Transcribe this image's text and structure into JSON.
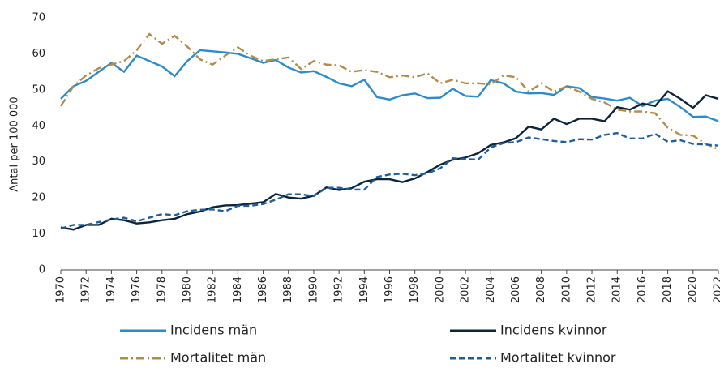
{
  "chart_data": {
    "type": "line",
    "y_label": "Antal per 100 000",
    "x": [
      1970,
      1971,
      1972,
      1973,
      1974,
      1975,
      1976,
      1977,
      1978,
      1979,
      1980,
      1981,
      1982,
      1983,
      1984,
      1985,
      1986,
      1987,
      1988,
      1989,
      1990,
      1991,
      1992,
      1993,
      1994,
      1995,
      1996,
      1997,
      1998,
      1999,
      2000,
      2001,
      2002,
      2003,
      2004,
      2005,
      2006,
      2007,
      2008,
      2009,
      2010,
      2011,
      2012,
      2013,
      2014,
      2015,
      2016,
      2017,
      2018,
      2019,
      2020,
      2021,
      2022
    ],
    "series": [
      {
        "name": "Incidens män",
        "color": "#2e8bc9",
        "dash": "solid",
        "values": [
          47.5,
          51,
          52.5,
          55,
          57.5,
          55,
          59.5,
          58,
          56.5,
          53.8,
          58,
          61,
          60.7,
          60.4,
          60,
          58.8,
          57.5,
          58.3,
          56.2,
          54.8,
          55.2,
          53.6,
          51.8,
          51,
          52.8,
          48,
          47.3,
          48.5,
          49,
          47.7,
          47.8,
          50.3,
          48.3,
          48.1,
          52.7,
          51.8,
          49.5,
          49,
          49.1,
          48.6,
          51,
          50.5,
          48,
          47.6,
          47,
          47.8,
          45.5,
          47,
          47.5,
          45.2,
          42.5,
          42.6,
          41.3
        ]
      },
      {
        "name": "Incidens kvinnor",
        "color": "#0d2538",
        "dash": "solid",
        "values": [
          11.8,
          11.2,
          12.5,
          12.5,
          14.2,
          13.8,
          12.9,
          13.2,
          13.8,
          14.2,
          15.5,
          16.2,
          17.4,
          17.9,
          18,
          18.4,
          18.8,
          21.1,
          20.1,
          19.8,
          20.6,
          22.9,
          22.2,
          22.7,
          24.5,
          25.2,
          25.2,
          24.4,
          25.4,
          27.2,
          29.2,
          30.6,
          31.2,
          32.4,
          34.7,
          35.4,
          36.6,
          39.8,
          39,
          42,
          40.5,
          42,
          42,
          41.3,
          45.2,
          44.5,
          46.2,
          45.5,
          49.6,
          47.5,
          45,
          48.5,
          47.5
        ]
      },
      {
        "name": "Mortalitet män",
        "color": "#b08d4a",
        "dash": "dashdot",
        "values": [
          45.5,
          51,
          54,
          56,
          57,
          58,
          61,
          65.5,
          62.8,
          65,
          62,
          58.5,
          57,
          59.5,
          61.8,
          59.5,
          58,
          58.5,
          59,
          55.8,
          58,
          57,
          56.8,
          55,
          55.5,
          55,
          53.5,
          54,
          53.5,
          54.6,
          51.8,
          52.8,
          51.8,
          51.8,
          51.5,
          54,
          53.5,
          49.5,
          51.8,
          49.5,
          51,
          49.5,
          47.5,
          46.5,
          44.5,
          44,
          44,
          43.5,
          39.5,
          37.5,
          37.3,
          35,
          33.5
        ]
      },
      {
        "name": "Mortalitet kvinnor",
        "color": "#1e5f9a",
        "dash": "dash",
        "values": [
          11.5,
          12.5,
          12.5,
          13.3,
          14,
          14.5,
          13.5,
          14.5,
          15.5,
          15.2,
          16.3,
          16.7,
          16.8,
          16.3,
          17.8,
          17.8,
          18.3,
          19.5,
          21,
          21,
          20.5,
          22.8,
          22.8,
          22.3,
          22.3,
          25.8,
          26.5,
          26.7,
          26.3,
          26.8,
          28.2,
          31,
          30.8,
          30.6,
          34,
          35.2,
          35.5,
          36.8,
          36.3,
          35.8,
          35.5,
          36.3,
          36.2,
          37.5,
          38,
          36.5,
          36.5,
          37.8,
          35.6,
          36,
          35,
          34.8,
          34.5
        ]
      }
    ],
    "xlim": [
      1970,
      2022
    ],
    "xticks": [
      1970,
      1972,
      1974,
      1976,
      1978,
      1980,
      1982,
      1984,
      1986,
      1988,
      1990,
      1992,
      1994,
      1996,
      1998,
      2000,
      2002,
      2004,
      2006,
      2008,
      2010,
      2012,
      2014,
      2016,
      2018,
      2020,
      2022
    ],
    "ylim": [
      0,
      70
    ],
    "yticks": [
      0,
      10,
      20,
      30,
      40,
      50,
      60,
      70
    ],
    "grid": false
  }
}
